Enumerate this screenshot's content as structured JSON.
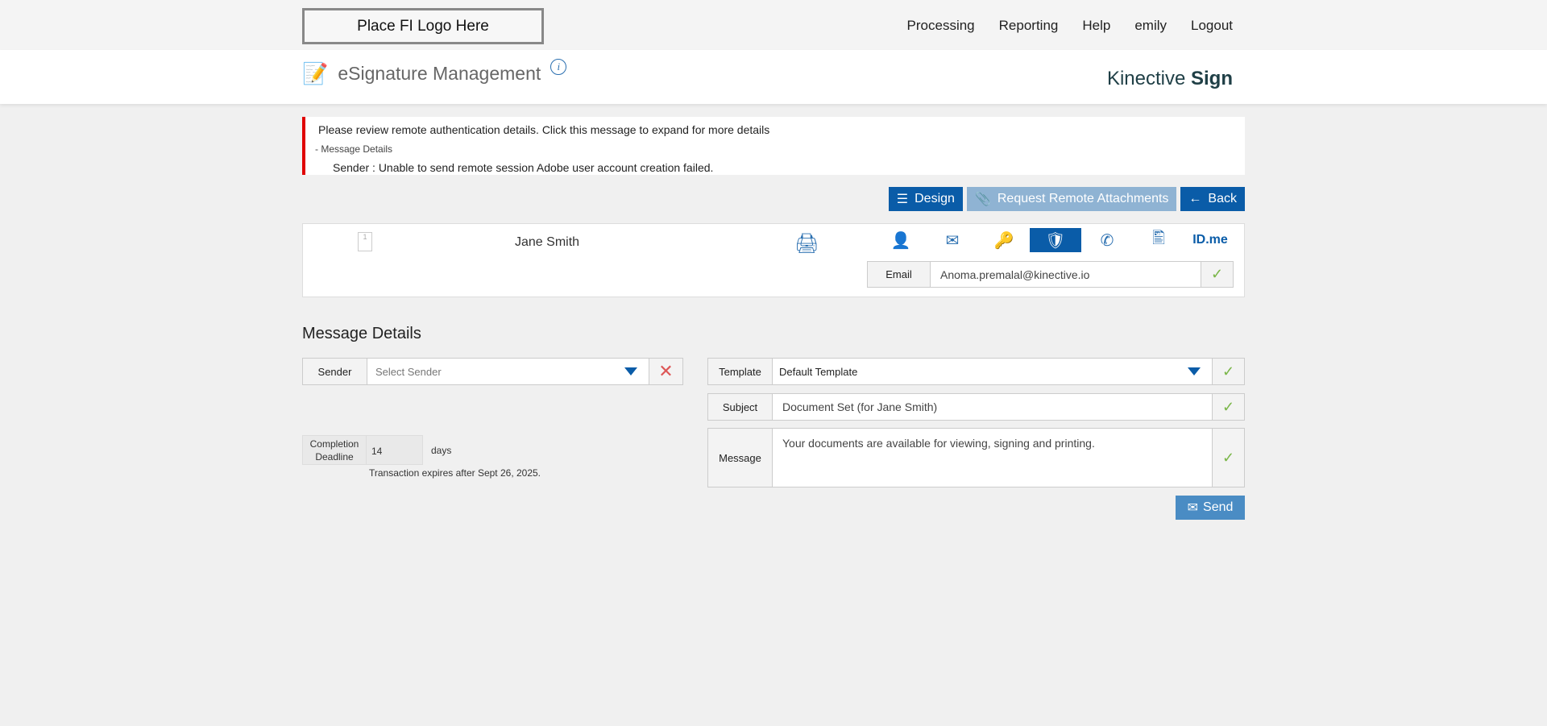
{
  "header": {
    "logo": "Place FI Logo Here",
    "nav": [
      "Processing",
      "Reporting",
      "Help",
      "emily",
      "Logout"
    ]
  },
  "band": {
    "title": "eSignature Management",
    "brand_light": "Kinective",
    "brand_bold": "Sign"
  },
  "alert": {
    "summary": "Please review remote authentication details. Click this message to expand for more details",
    "toggle": "- Message Details",
    "detail": "Sender :  Unable to send remote session Adobe user account creation failed."
  },
  "actions": {
    "design": "Design",
    "request": "Request Remote Attachments",
    "back": "Back"
  },
  "recipient": {
    "page": "1",
    "name": "Jane Smith",
    "methods": [
      "in-person-icon",
      "email-icon",
      "password-icon",
      "kba-icon",
      "phone-icon",
      "id-upload-icon",
      "ID.me"
    ],
    "selected_method": "kba-icon",
    "email_label": "Email",
    "email": "Anoma.premalal@kinective.io"
  },
  "message": {
    "heading": "Message Details",
    "sender_label": "Sender",
    "sender_placeholder": "Select Sender",
    "template_label": "Template",
    "template": "Default Template",
    "subject_label": "Subject",
    "subject": "Document Set (for Jane Smith)",
    "message_label": "Message",
    "message": "Your documents are available for viewing, signing and printing.",
    "deadline_label": "Completion Deadline",
    "deadline": "14",
    "deadline_unit": "days",
    "expires": "Transaction expires after Sept 26, 2025.",
    "send": "Send"
  },
  "colors": {
    "primary": "#0a5ca8",
    "error": "#e00000",
    "check": "#7ab648"
  }
}
